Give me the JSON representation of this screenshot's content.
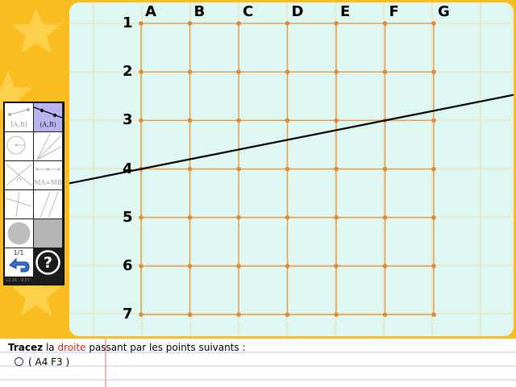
{
  "grid": {
    "columns": [
      "A",
      "B",
      "C",
      "D",
      "E",
      "F",
      "G"
    ],
    "rows": [
      "1",
      "2",
      "3",
      "4",
      "5",
      "6",
      "7"
    ],
    "line_through": [
      "A4",
      "F3"
    ],
    "colors": {
      "board": "#dff7f3",
      "grid_line": "#e0a055",
      "grid_point": "#e08a35",
      "notebook_line": "#f1dca8",
      "drawn_line": "#000000",
      "background": "#f9bd1f"
    }
  },
  "toolbox": {
    "tools": [
      {
        "name": "segment",
        "label": "[A,B]",
        "icon": "segment-tool-icon",
        "active": false
      },
      {
        "name": "line",
        "label": "(A,B)",
        "icon": "line-tool-icon",
        "active": true
      },
      {
        "name": "circle",
        "label": "",
        "icon": "circle-tool-icon",
        "active": false
      },
      {
        "name": "angle-lines",
        "label": "",
        "icon": "lines-tool-icon",
        "active": false
      },
      {
        "name": "intersection",
        "label": "∩",
        "icon": "intersection-tool-icon",
        "active": false
      },
      {
        "name": "midpoint",
        "label": "MA=MB",
        "icon": "midpoint-tool-icon",
        "active": false
      },
      {
        "name": "perpendicular",
        "label": "",
        "icon": "perpendicular-tool-icon",
        "active": false
      },
      {
        "name": "parallel",
        "label": "",
        "icon": "parallel-tool-icon",
        "active": false
      },
      {
        "name": "color-gray",
        "label": "",
        "icon": "gray-disc-icon",
        "active": false
      },
      {
        "name": "color-square",
        "label": "",
        "icon": "gray-square-icon",
        "active": false
      }
    ],
    "page_indicator": "1/1",
    "version": "v2.16 · 9.57",
    "back_icon": "back-arrow-icon",
    "help_icon": "help-icon"
  },
  "instructions": {
    "verb": "Tracez",
    "text_a": " la ",
    "highlight": "droite",
    "text_b": " passant par les points suivants :",
    "item": "( A4 F3 )"
  }
}
